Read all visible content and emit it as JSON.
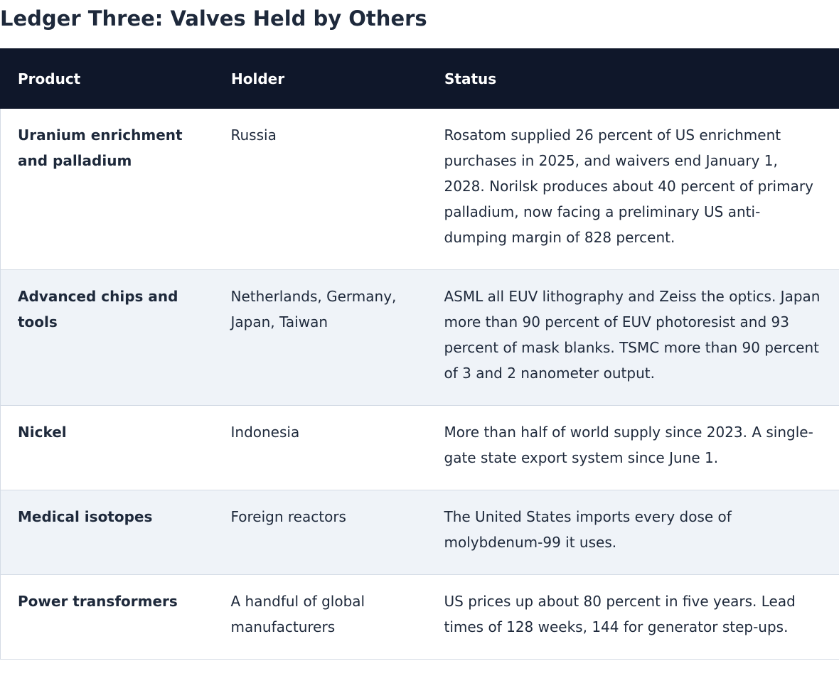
{
  "title": "Ledger Three: Valves Held by Others",
  "table": {
    "headers": [
      "Product",
      "Holder",
      "Status"
    ],
    "rows": [
      {
        "product": "Uranium enrichment and palladium",
        "holder": "Russia",
        "status": "Rosatom supplied 26 percent of US enrichment purchases in 2025, and waivers end January 1, 2028. Norilsk produces about 40 percent of primary palladium, now facing a preliminary US anti-dumping margin of 828 percent."
      },
      {
        "product": "Advanced chips and tools",
        "holder": "Netherlands, Germany, Japan, Taiwan",
        "status": "ASML all EUV lithography and Zeiss the optics. Japan more than 90 percent of EUV photoresist and 93 percent of mask blanks. TSMC more than 90 percent of 3 and 2 nanometer output."
      },
      {
        "product": "Nickel",
        "holder": "Indonesia",
        "status": "More than half of world supply since 2023. A single-gate state export system since June 1."
      },
      {
        "product": "Medical isotopes",
        "holder": "Foreign reactors",
        "status": "The United States imports every dose of molybdenum-99 it uses."
      },
      {
        "product": "Power transformers",
        "holder": "A handful of global manufacturers",
        "status": "US prices up about 80 percent in five years. Lead times of 128 weeks, 144 for generator step-ups."
      }
    ]
  }
}
